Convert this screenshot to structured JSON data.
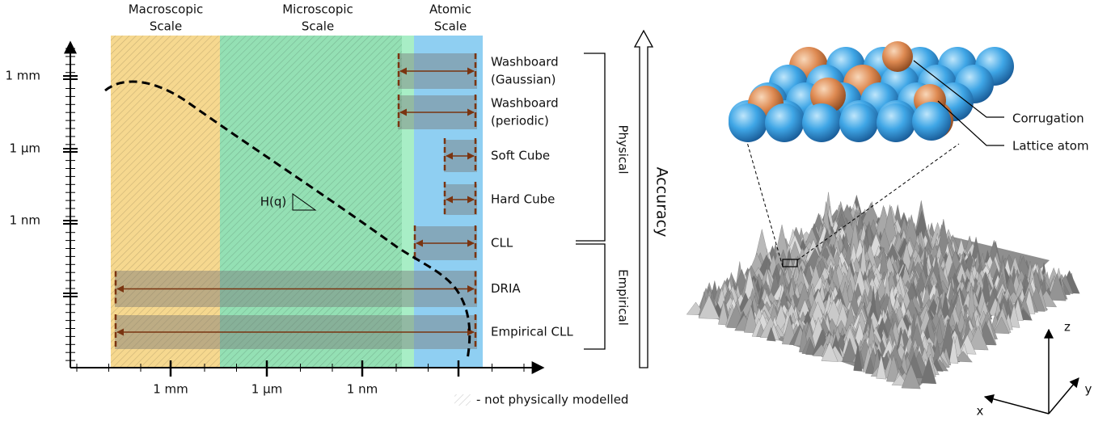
{
  "scales": [
    {
      "lines": [
        "Macroscopic",
        "Scale"
      ]
    },
    {
      "lines": [
        "Microscopic",
        "Scale"
      ]
    },
    {
      "lines": [
        "Atomic",
        "Scale"
      ]
    }
  ],
  "y_axis_labels": [
    "1 mm",
    "1 μm",
    "1 nm"
  ],
  "x_axis_labels": [
    "1 mm",
    "1 μm",
    "1 nm"
  ],
  "slope_label": "H(q)",
  "models": [
    {
      "lines": [
        "Washboard",
        "(Gaussian)"
      ]
    },
    {
      "lines": [
        "Washboard",
        "(periodic)"
      ]
    },
    {
      "lines": [
        "Soft Cube"
      ]
    },
    {
      "lines": [
        "Hard Cube"
      ]
    },
    {
      "lines": [
        "CLL"
      ]
    },
    {
      "lines": [
        "DRIA"
      ]
    },
    {
      "lines": [
        "Empirical CLL"
      ]
    }
  ],
  "groups": [
    "Physical",
    "Empirical"
  ],
  "accuracy": "Accuracy",
  "legend": "- not physically modelled",
  "lattice_labels": [
    "Corrugation",
    "Lattice atom"
  ],
  "axes": [
    "z",
    "y",
    "x"
  ]
}
